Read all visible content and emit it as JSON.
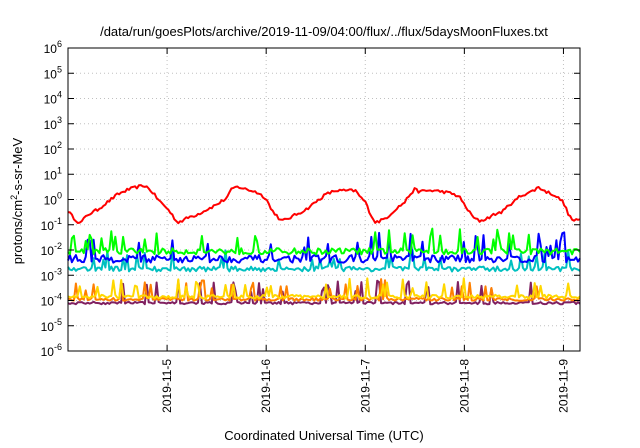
{
  "chart_data": {
    "type": "line",
    "title": "/data/run/goesPlots/archive/2019-11-09/04:00/flux/../flux/5daysMoonFluxes.txt",
    "xlabel": "Coordinated Universal Time (UTC)",
    "ylabel": "protons/cm2-s-sr-MeV",
    "ylabel_parts": {
      "base": "protons/cm",
      "sup": "2",
      "rest": "-s-sr-MeV"
    },
    "yscale": "log",
    "ylim_exponents": [
      -6,
      6
    ],
    "y_tick_base": "10",
    "y_tick_exponents": [
      "-6",
      "-5",
      "-4",
      "-3",
      "-2",
      "-1",
      "0",
      "1",
      "2",
      "3",
      "4",
      "5",
      "6"
    ],
    "xlim_days": [
      0,
      5.167
    ],
    "x_tick_positions_days": [
      1,
      2,
      3,
      4,
      5
    ],
    "x_tick_labels": [
      "2019-11-5",
      "2019-11-6",
      "2019-11-7",
      "2019-11-8",
      "2019-11-9"
    ],
    "grid": true,
    "legend": "none",
    "series": [
      {
        "color": "#ff0000",
        "role": "envelope",
        "max_exp": 0.55,
        "min_exp": -0.95,
        "waypoints": [
          [
            0.0,
            -0.45
          ],
          [
            0.05,
            -0.7
          ],
          [
            0.12,
            -0.95
          ],
          [
            0.2,
            -0.6
          ],
          [
            0.3,
            -0.4
          ],
          [
            0.4,
            -0.1
          ],
          [
            0.5,
            0.2
          ],
          [
            0.6,
            0.38
          ],
          [
            0.7,
            0.5
          ],
          [
            0.78,
            0.55
          ],
          [
            0.85,
            0.3
          ],
          [
            0.92,
            -0.05
          ],
          [
            1.0,
            -0.35
          ],
          [
            1.05,
            -0.6
          ],
          [
            1.1,
            -0.9
          ],
          [
            1.15,
            -0.85
          ],
          [
            1.22,
            -0.7
          ],
          [
            1.3,
            -0.6
          ],
          [
            1.4,
            -0.4
          ],
          [
            1.5,
            -0.2
          ],
          [
            1.6,
            0.05
          ],
          [
            1.66,
            0.45
          ],
          [
            1.72,
            0.5
          ],
          [
            1.8,
            0.4
          ],
          [
            1.9,
            0.3
          ],
          [
            2.0,
            0.05
          ],
          [
            2.05,
            -0.4
          ],
          [
            2.1,
            -0.6
          ],
          [
            2.15,
            -0.85
          ],
          [
            2.2,
            -0.8
          ],
          [
            2.3,
            -0.6
          ],
          [
            2.4,
            -0.4
          ],
          [
            2.5,
            -0.1
          ],
          [
            2.6,
            0.2
          ],
          [
            2.7,
            0.35
          ],
          [
            2.8,
            0.35
          ],
          [
            2.9,
            0.35
          ],
          [
            2.95,
            0.1
          ],
          [
            3.0,
            -0.1
          ],
          [
            3.05,
            -0.55
          ],
          [
            3.1,
            -0.9
          ],
          [
            3.15,
            -0.85
          ],
          [
            3.2,
            -0.75
          ],
          [
            3.25,
            -0.6
          ],
          [
            3.3,
            -0.4
          ],
          [
            3.4,
            -0.1
          ],
          [
            3.45,
            0.2
          ],
          [
            3.5,
            0.4
          ],
          [
            3.55,
            0.3
          ],
          [
            3.6,
            0.35
          ],
          [
            3.7,
            0.35
          ],
          [
            3.8,
            0.3
          ],
          [
            3.9,
            0.2
          ],
          [
            3.95,
            0.1
          ],
          [
            4.0,
            -0.2
          ],
          [
            4.05,
            -0.5
          ],
          [
            4.1,
            -0.75
          ],
          [
            4.15,
            -0.85
          ],
          [
            4.2,
            -0.8
          ],
          [
            4.3,
            -0.6
          ],
          [
            4.4,
            -0.45
          ],
          [
            4.45,
            -0.2
          ],
          [
            4.5,
            -0.1
          ],
          [
            4.55,
            0.1
          ],
          [
            4.6,
            0.2
          ],
          [
            4.7,
            0.35
          ],
          [
            4.75,
            0.5
          ],
          [
            4.8,
            0.35
          ],
          [
            4.9,
            0.2
          ],
          [
            4.95,
            0.05
          ],
          [
            5.0,
            -0.1
          ],
          [
            5.05,
            -0.6
          ],
          [
            5.1,
            -0.85
          ],
          [
            5.167,
            -0.8
          ]
        ]
      },
      {
        "color": "#00ff00",
        "role": "base-with-spikes",
        "base_exp": -2.05,
        "spread": 0.25,
        "spike_exp": -1.1
      },
      {
        "color": "#0000ff",
        "role": "base-with-spikes",
        "base_exp": -2.35,
        "spread": 0.3,
        "spike_exp": -1.25
      },
      {
        "color": "#00c0c0",
        "role": "base-with-spikes",
        "base_exp": -2.75,
        "spread": 0.2,
        "spike_exp": -2.0
      },
      {
        "color": "#ffd700",
        "role": "base-with-spikes",
        "base_exp": -3.85,
        "spread": 0.15,
        "spike_exp": -3.1
      },
      {
        "color": "#ff8000",
        "role": "base-with-spikes",
        "base_exp": -3.95,
        "spread": 0.12,
        "spike_exp": -3.15
      },
      {
        "color": "#802060",
        "role": "base-with-spikes",
        "base_exp": -4.1,
        "spread": 0.1,
        "spike_exp": -3.2
      }
    ]
  }
}
